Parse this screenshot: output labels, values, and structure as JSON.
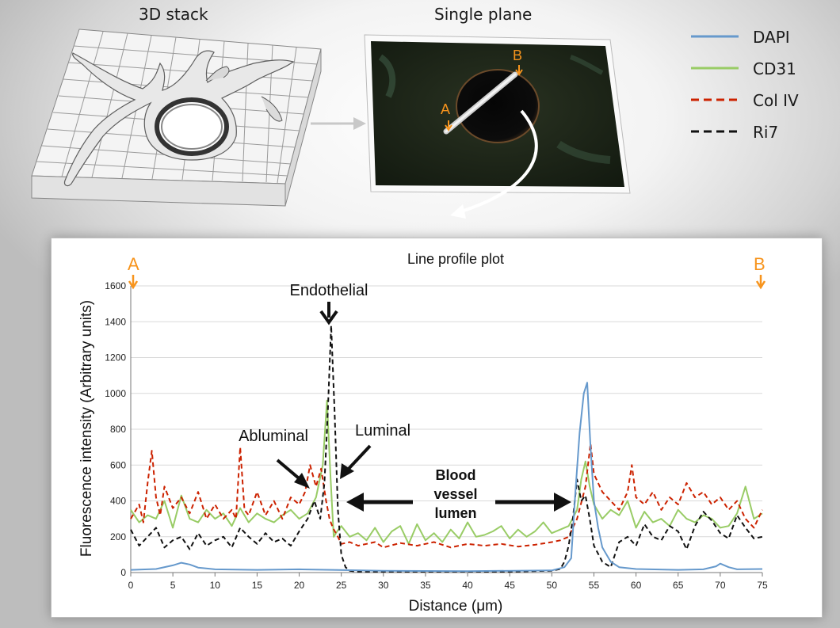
{
  "figure": {
    "stack_caption": "3D stack",
    "plane_caption": "Single plane",
    "plane_marker_a": "A",
    "plane_marker_b": "B"
  },
  "colors": {
    "dapi": "#6699cc",
    "cd31": "#99cc66",
    "colIV": "#cc2200",
    "ri7": "#111111",
    "marker": "#f7941d"
  },
  "legend": [
    {
      "label": "DAPI",
      "color": "#6699cc",
      "dash": false
    },
    {
      "label": "CD31",
      "color": "#99cc66",
      "dash": false
    },
    {
      "label": "Col IV",
      "color": "#cc2200",
      "dash": true
    },
    {
      "label": "Ri7",
      "color": "#111111",
      "dash": true
    }
  ],
  "chart_data": {
    "type": "line",
    "title": "Line profile plot",
    "xlabel": "Distance (μm)",
    "ylabel": "Fluorescence intensity (Arbitrary units)",
    "xlim": [
      0,
      75
    ],
    "ylim": [
      0,
      1600
    ],
    "xticks": [
      "0",
      "5",
      "10",
      "15",
      "20",
      "25",
      "30",
      "35",
      "40",
      "45",
      "50",
      "55",
      "60",
      "65",
      "70",
      "75"
    ],
    "yticks": [
      "0",
      "200",
      "400",
      "600",
      "800",
      "1000",
      "1200",
      "1400",
      "1600"
    ],
    "grid": "horizontal",
    "markers": {
      "start": "A",
      "end": "B"
    },
    "annotations": {
      "endothelial": "Endothelial",
      "abluminal": "Abluminal",
      "luminal": "Luminal",
      "lumen_line1": "Blood",
      "lumen_line2": "vessel",
      "lumen_line3": "lumen"
    },
    "series": [
      {
        "name": "DAPI",
        "x": [
          0,
          3,
          5,
          6,
          7,
          8,
          10,
          15,
          20,
          24,
          30,
          40,
          50,
          51.5,
          52.3,
          52.8,
          53.3,
          53.8,
          54.2,
          54.6,
          55,
          55.5,
          56,
          57,
          58,
          60,
          65,
          68,
          69.5,
          70,
          71,
          72,
          75
        ],
        "y": [
          15,
          20,
          40,
          55,
          45,
          28,
          18,
          15,
          18,
          15,
          10,
          8,
          12,
          30,
          80,
          450,
          780,
          1000,
          1060,
          700,
          400,
          250,
          140,
          60,
          30,
          20,
          15,
          18,
          35,
          50,
          30,
          18,
          20
        ]
      },
      {
        "name": "CD31",
        "x": [
          0,
          1,
          2,
          3,
          4,
          5,
          6,
          7,
          8,
          9,
          10,
          11,
          12,
          13,
          14,
          15,
          16,
          17,
          18,
          19,
          20,
          21,
          22,
          22.8,
          23.3,
          23.7,
          24.1,
          24.5,
          25,
          26,
          27,
          28,
          29,
          30,
          31,
          32,
          33,
          34,
          35,
          36,
          37,
          38,
          39,
          40,
          41,
          42,
          43,
          44,
          45,
          46,
          47,
          48,
          49,
          50,
          51,
          52,
          53,
          53.5,
          54,
          54.5,
          55,
          56,
          57,
          58,
          59,
          60,
          61,
          62,
          63,
          64,
          65,
          66,
          67,
          68,
          69,
          70,
          71,
          72,
          73,
          74,
          75
        ],
        "y": [
          350,
          280,
          320,
          300,
          400,
          250,
          430,
          300,
          280,
          350,
          300,
          330,
          260,
          360,
          280,
          330,
          300,
          280,
          320,
          350,
          300,
          330,
          420,
          600,
          960,
          550,
          200,
          230,
          260,
          200,
          220,
          180,
          250,
          170,
          230,
          260,
          160,
          270,
          180,
          220,
          170,
          240,
          190,
          280,
          200,
          210,
          230,
          260,
          190,
          240,
          200,
          230,
          280,
          220,
          240,
          260,
          350,
          520,
          620,
          480,
          380,
          300,
          350,
          320,
          400,
          250,
          340,
          280,
          300,
          260,
          350,
          300,
          280,
          320,
          300,
          250,
          260,
          330,
          480,
          300,
          330
        ]
      },
      {
        "name": "Col IV",
        "x": [
          0,
          1,
          1.5,
          2,
          2.5,
          3,
          3.5,
          4,
          5,
          6,
          7,
          8,
          9,
          10,
          11,
          12,
          12.5,
          13,
          13.5,
          14,
          15,
          16,
          17,
          18,
          19,
          20,
          20.7,
          21.3,
          22,
          22.6,
          23.2,
          23.6,
          24,
          24.6,
          25,
          26,
          27,
          28,
          29,
          30,
          32,
          34,
          36,
          38,
          40,
          42,
          44,
          46,
          48,
          50,
          51,
          52,
          53,
          54,
          54.6,
          55,
          56,
          57,
          58,
          59,
          59.5,
          60,
          61,
          62,
          63,
          64,
          65,
          66,
          67,
          68,
          69,
          70,
          71,
          72,
          73,
          74,
          75
        ],
        "y": [
          300,
          380,
          280,
          500,
          680,
          420,
          320,
          480,
          360,
          420,
          330,
          450,
          300,
          380,
          300,
          350,
          300,
          700,
          350,
          320,
          450,
          320,
          400,
          300,
          420,
          380,
          450,
          600,
          480,
          580,
          400,
          300,
          250,
          200,
          160,
          170,
          150,
          160,
          170,
          140,
          165,
          150,
          170,
          140,
          160,
          150,
          160,
          145,
          155,
          170,
          180,
          200,
          300,
          480,
          720,
          550,
          450,
          400,
          350,
          450,
          600,
          420,
          380,
          450,
          350,
          420,
          380,
          500,
          420,
          450,
          380,
          420,
          350,
          400,
          300,
          250,
          350
        ]
      },
      {
        "name": "Ri7",
        "x": [
          0,
          1,
          2,
          3,
          4,
          5,
          6,
          7,
          8,
          9,
          10,
          11,
          12,
          13,
          14,
          15,
          16,
          17,
          18,
          19,
          20,
          21,
          21.8,
          22.5,
          23,
          23.4,
          23.8,
          24.2,
          24.6,
          25,
          25.5,
          26,
          27,
          28,
          30,
          35,
          40,
          45,
          50,
          51,
          51.5,
          52,
          52.5,
          53,
          53.5,
          54,
          54.5,
          55,
          56,
          57,
          58,
          59,
          60,
          61,
          62,
          63,
          64,
          65,
          66,
          67,
          68,
          69,
          70,
          71,
          72,
          73,
          74,
          75
        ],
        "y": [
          240,
          150,
          200,
          250,
          140,
          180,
          200,
          130,
          220,
          150,
          180,
          200,
          140,
          250,
          200,
          160,
          220,
          170,
          190,
          150,
          230,
          300,
          400,
          300,
          500,
          900,
          1380,
          900,
          350,
          100,
          30,
          10,
          5,
          5,
          5,
          5,
          5,
          5,
          10,
          20,
          60,
          150,
          300,
          520,
          400,
          430,
          300,
          150,
          60,
          30,
          170,
          200,
          150,
          270,
          200,
          180,
          260,
          230,
          130,
          260,
          340,
          290,
          220,
          190,
          320,
          250,
          190,
          200
        ]
      }
    ]
  }
}
